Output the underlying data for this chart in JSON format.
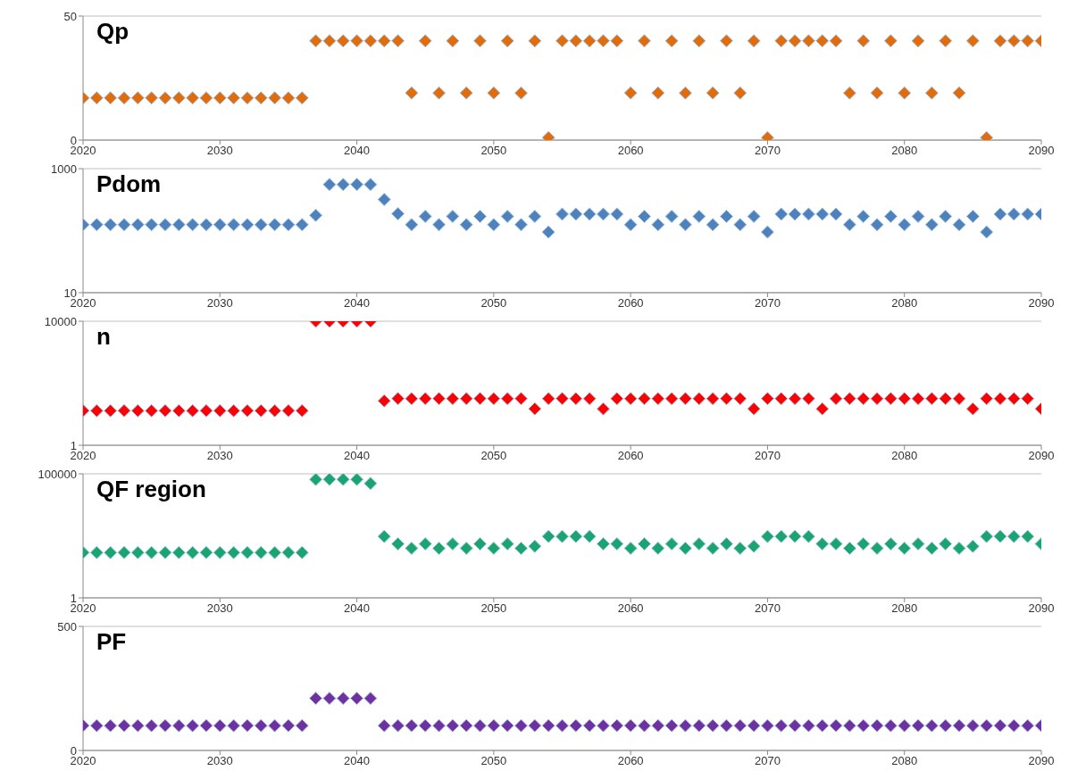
{
  "chart_data": [
    {
      "type": "scatter",
      "title": "Qp",
      "marker": "diamond",
      "grid": "y",
      "xlim": [
        2020,
        2090
      ],
      "xticks": [
        2020,
        2030,
        2040,
        2050,
        2060,
        2070,
        2080,
        2090
      ],
      "ylim": [
        0,
        50
      ],
      "yticks": [
        0,
        50
      ],
      "x": [
        2020,
        2021,
        2022,
        2023,
        2024,
        2025,
        2026,
        2027,
        2028,
        2029,
        2030,
        2031,
        2032,
        2033,
        2034,
        2035,
        2036,
        2037,
        2038,
        2039,
        2040,
        2041,
        2042,
        2043,
        2044,
        2045,
        2046,
        2047,
        2048,
        2049,
        2050,
        2051,
        2052,
        2053,
        2054,
        2055,
        2056,
        2057,
        2058,
        2059,
        2060,
        2061,
        2062,
        2063,
        2064,
        2065,
        2066,
        2067,
        2068,
        2069,
        2070,
        2071,
        2072,
        2073,
        2074,
        2075,
        2076,
        2077,
        2078,
        2079,
        2080,
        2081,
        2082,
        2083,
        2084,
        2085,
        2086,
        2087,
        2088,
        2089,
        2090
      ],
      "series": [
        {
          "color": "#e36c0a",
          "values": [
            17,
            17,
            17,
            17,
            17,
            17,
            17,
            17,
            17,
            17,
            17,
            17,
            17,
            17,
            17,
            17,
            17,
            40,
            40,
            40,
            40,
            40,
            40,
            40,
            19,
            40,
            19,
            40,
            19,
            40,
            19,
            40,
            19,
            40,
            1,
            40,
            40,
            40,
            40,
            40,
            19,
            40,
            19,
            40,
            19,
            40,
            19,
            40,
            19,
            40,
            1,
            40,
            40,
            40,
            40,
            40,
            19,
            40,
            19,
            40,
            19,
            40,
            19,
            40,
            19,
            40,
            1,
            40,
            40,
            40,
            40
          ]
        }
      ]
    },
    {
      "type": "scatter",
      "title": "Pdom",
      "marker": "diamond",
      "grid": "y",
      "log": "y",
      "xlim": [
        2020,
        2090
      ],
      "xticks": [
        2020,
        2030,
        2040,
        2050,
        2060,
        2070,
        2080,
        2090
      ],
      "ylim": [
        10,
        1000
      ],
      "yticks": [
        10,
        1000
      ],
      "x": [
        2020,
        2021,
        2022,
        2023,
        2024,
        2025,
        2026,
        2027,
        2028,
        2029,
        2030,
        2031,
        2032,
        2033,
        2034,
        2035,
        2036,
        2037,
        2038,
        2039,
        2040,
        2041,
        2042,
        2043,
        2044,
        2045,
        2046,
        2047,
        2048,
        2049,
        2050,
        2051,
        2052,
        2053,
        2054,
        2055,
        2056,
        2057,
        2058,
        2059,
        2060,
        2061,
        2062,
        2063,
        2064,
        2065,
        2066,
        2067,
        2068,
        2069,
        2070,
        2071,
        2072,
        2073,
        2074,
        2075,
        2076,
        2077,
        2078,
        2079,
        2080,
        2081,
        2082,
        2083,
        2084,
        2085,
        2086,
        2087,
        2088,
        2089,
        2090
      ],
      "series": [
        {
          "color": "#4f81bd",
          "values": [
            125,
            125,
            125,
            125,
            125,
            125,
            125,
            125,
            125,
            125,
            125,
            125,
            125,
            125,
            125,
            125,
            125,
            177,
            556,
            556,
            556,
            556,
            318,
            187,
            125,
            170,
            125,
            170,
            125,
            170,
            125,
            170,
            125,
            170,
            95,
            185,
            185,
            185,
            185,
            185,
            125,
            170,
            125,
            170,
            125,
            170,
            125,
            170,
            125,
            170,
            95,
            185,
            185,
            185,
            185,
            185,
            125,
            170,
            125,
            170,
            125,
            170,
            125,
            170,
            125,
            170,
            95,
            185,
            185,
            185,
            185
          ]
        }
      ]
    },
    {
      "type": "scatter",
      "title": "n",
      "marker": "diamond",
      "grid": "y",
      "log": "y",
      "xlim": [
        2020,
        2090
      ],
      "xticks": [
        2020,
        2030,
        2040,
        2050,
        2060,
        2070,
        2080,
        2090
      ],
      "ylim": [
        1,
        10000
      ],
      "yticks": [
        1,
        10000
      ],
      "x": [
        2020,
        2021,
        2022,
        2023,
        2024,
        2025,
        2026,
        2027,
        2028,
        2029,
        2030,
        2031,
        2032,
        2033,
        2034,
        2035,
        2036,
        2037,
        2038,
        2039,
        2040,
        2041,
        2042,
        2043,
        2044,
        2045,
        2046,
        2047,
        2048,
        2049,
        2050,
        2051,
        2052,
        2053,
        2054,
        2055,
        2056,
        2057,
        2058,
        2059,
        2060,
        2061,
        2062,
        2063,
        2064,
        2065,
        2066,
        2067,
        2068,
        2069,
        2070,
        2071,
        2072,
        2073,
        2074,
        2075,
        2076,
        2077,
        2078,
        2079,
        2080,
        2081,
        2082,
        2083,
        2084,
        2085,
        2086,
        2087,
        2088,
        2089,
        2090
      ],
      "series": [
        {
          "color": "#ff0000",
          "values": [
            13,
            13,
            13,
            13,
            13,
            13,
            13,
            13,
            13,
            13,
            13,
            13,
            13,
            13,
            13,
            13,
            13,
            10000,
            10000,
            10000,
            10000,
            10000,
            27,
            32,
            32,
            32,
            32,
            32,
            32,
            32,
            32,
            32,
            32,
            15,
            32,
            32,
            32,
            32,
            15,
            32,
            32,
            32,
            32,
            32,
            32,
            32,
            32,
            32,
            32,
            15,
            32,
            32,
            32,
            32,
            15,
            32,
            32,
            32,
            32,
            32,
            32,
            32,
            32,
            32,
            32,
            15,
            32,
            32,
            32,
            32,
            15
          ]
        }
      ]
    },
    {
      "type": "scatter",
      "title": "QF region",
      "marker": "diamond",
      "grid": "y",
      "log": "y",
      "xlim": [
        2020,
        2090
      ],
      "xticks": [
        2020,
        2030,
        2040,
        2050,
        2060,
        2070,
        2080,
        2090
      ],
      "ylim": [
        1,
        100000
      ],
      "yticks": [
        1,
        100000
      ],
      "x": [
        2020,
        2021,
        2022,
        2023,
        2024,
        2025,
        2026,
        2027,
        2028,
        2029,
        2030,
        2031,
        2032,
        2033,
        2034,
        2035,
        2036,
        2037,
        2038,
        2039,
        2040,
        2041,
        2042,
        2043,
        2044,
        2045,
        2046,
        2047,
        2048,
        2049,
        2050,
        2051,
        2052,
        2053,
        2054,
        2055,
        2056,
        2057,
        2058,
        2059,
        2060,
        2061,
        2062,
        2063,
        2064,
        2065,
        2066,
        2067,
        2068,
        2069,
        2070,
        2071,
        2072,
        2073,
        2074,
        2075,
        2076,
        2077,
        2078,
        2079,
        2080,
        2081,
        2082,
        2083,
        2084,
        2085,
        2086,
        2087,
        2088,
        2089,
        2090
      ],
      "series": [
        {
          "color": "#1aa56e",
          "values": [
            67,
            67,
            67,
            67,
            67,
            67,
            67,
            67,
            67,
            67,
            67,
            67,
            67,
            67,
            67,
            67,
            67,
            60000,
            60000,
            60000,
            60000,
            41000,
            300,
            150,
            100,
            150,
            100,
            150,
            100,
            150,
            100,
            150,
            100,
            120,
            300,
            300,
            300,
            300,
            150,
            150,
            100,
            150,
            100,
            150,
            100,
            150,
            100,
            150,
            100,
            120,
            300,
            300,
            300,
            300,
            150,
            150,
            100,
            150,
            100,
            150,
            100,
            150,
            100,
            150,
            100,
            120,
            300,
            300,
            300,
            300,
            150
          ]
        }
      ]
    },
    {
      "type": "scatter",
      "title": "PF",
      "marker": "diamond",
      "grid": "y",
      "xlim": [
        2020,
        2090
      ],
      "xticks": [
        2020,
        2030,
        2040,
        2050,
        2060,
        2070,
        2080,
        2090
      ],
      "ylim": [
        0,
        500
      ],
      "yticks": [
        0,
        500
      ],
      "x": [
        2020,
        2021,
        2022,
        2023,
        2024,
        2025,
        2026,
        2027,
        2028,
        2029,
        2030,
        2031,
        2032,
        2033,
        2034,
        2035,
        2036,
        2037,
        2038,
        2039,
        2040,
        2041,
        2042,
        2043,
        2044,
        2045,
        2046,
        2047,
        2048,
        2049,
        2050,
        2051,
        2052,
        2053,
        2054,
        2055,
        2056,
        2057,
        2058,
        2059,
        2060,
        2061,
        2062,
        2063,
        2064,
        2065,
        2066,
        2067,
        2068,
        2069,
        2070,
        2071,
        2072,
        2073,
        2074,
        2075,
        2076,
        2077,
        2078,
        2079,
        2080,
        2081,
        2082,
        2083,
        2084,
        2085,
        2086,
        2087,
        2088,
        2089,
        2090
      ],
      "series": [
        {
          "color": "#7030a0",
          "values": [
            100,
            100,
            100,
            100,
            100,
            100,
            100,
            100,
            100,
            100,
            100,
            100,
            100,
            100,
            100,
            100,
            100,
            210,
            210,
            210,
            210,
            210,
            100,
            100,
            100,
            100,
            100,
            100,
            100,
            100,
            100,
            100,
            100,
            100,
            100,
            100,
            100,
            100,
            100,
            100,
            100,
            100,
            100,
            100,
            100,
            100,
            100,
            100,
            100,
            100,
            100,
            100,
            100,
            100,
            100,
            100,
            100,
            100,
            100,
            100,
            100,
            100,
            100,
            100,
            100,
            100,
            100,
            100,
            100,
            100,
            100
          ]
        }
      ]
    }
  ]
}
